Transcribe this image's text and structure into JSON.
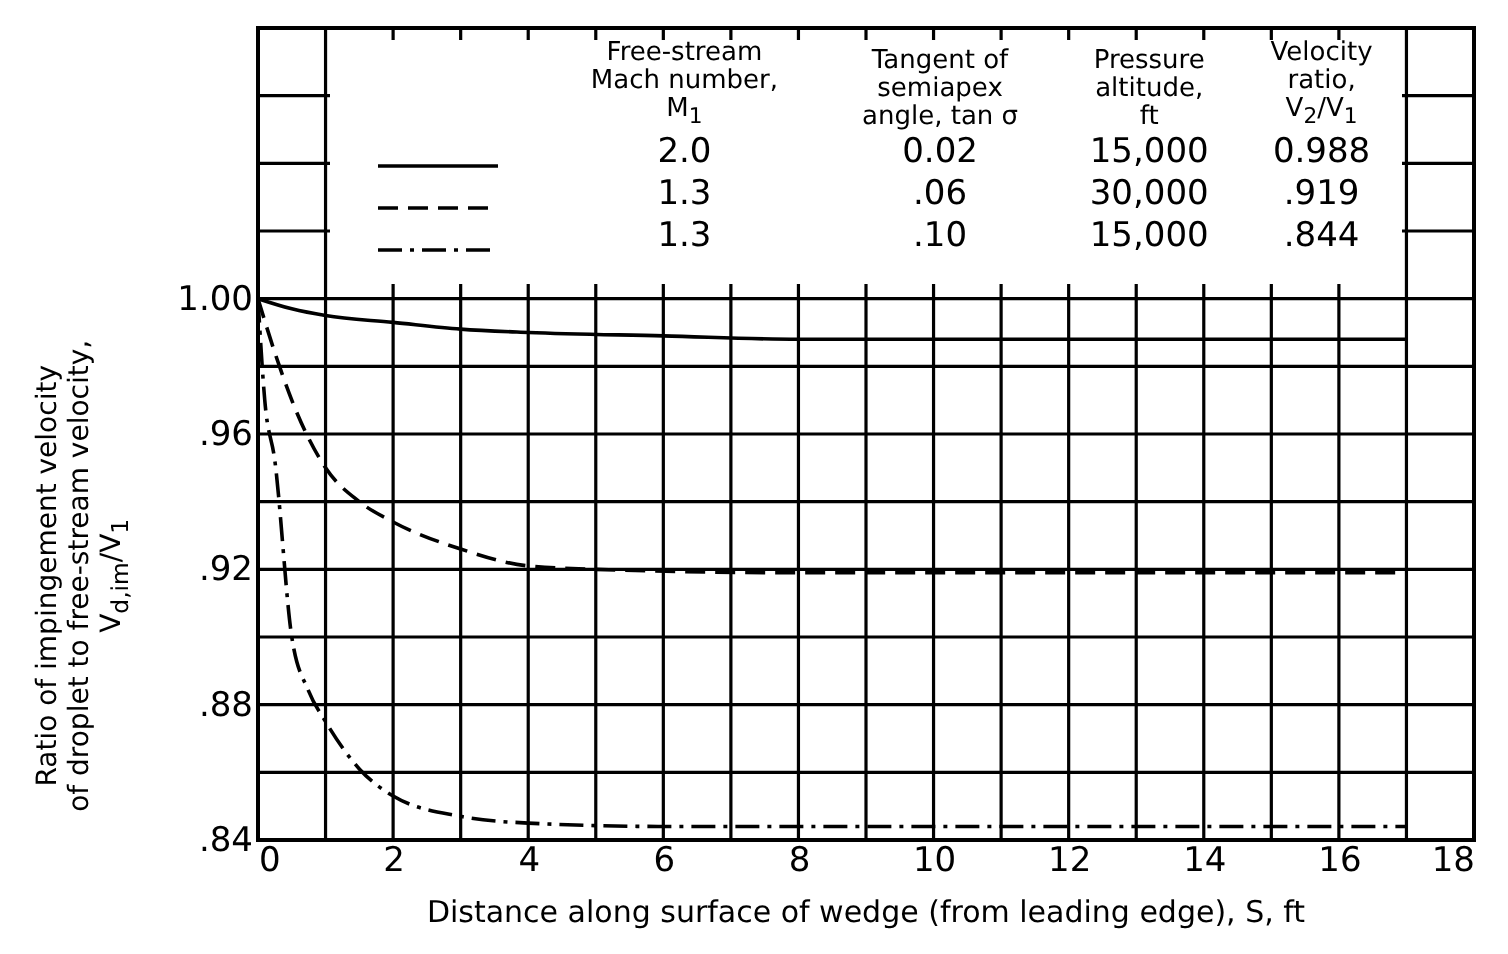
{
  "chart_data": {
    "type": "line",
    "xlabel": "Distance along surface of wedge (from leading edge), S, ft",
    "ylabel": "Ratio of impingement velocity\nof droplet to free-stream velocity,\nV$_{d,im}$/V$_{1}$",
    "xlim": [
      0,
      18
    ],
    "xticks": [
      0,
      {
        "value": 1,
        "label": null
      },
      2,
      {
        "value": 3,
        "label": null
      },
      4,
      {
        "value": 5,
        "label": null
      },
      6,
      {
        "value": 7,
        "label": null
      },
      8,
      {
        "value": 9,
        "label": null
      },
      10,
      {
        "value": 11,
        "label": null
      },
      12,
      {
        "value": 13,
        "label": null
      },
      14,
      {
        "value": 15,
        "label": null
      },
      16,
      {
        "value": 17,
        "label": null
      },
      18
    ],
    "ylim": [
      0.84,
      1.08
    ],
    "yticks": [
      {
        "value": 0.84,
        "label": ".84"
      },
      {
        "value": 0.86,
        "label": null
      },
      {
        "value": 0.88,
        "label": ".88"
      },
      {
        "value": 0.9,
        "label": null
      },
      {
        "value": 0.92,
        "label": ".92"
      },
      {
        "value": 0.94,
        "label": null
      },
      {
        "value": 0.96,
        "label": ".96"
      },
      {
        "value": 0.98,
        "label": null
      },
      {
        "value": 1.0,
        "label": "1.00"
      },
      {
        "value": 1.02,
        "label": null
      },
      {
        "value": 1.04,
        "label": null
      },
      {
        "value": 1.06,
        "label": null
      },
      {
        "value": 1.08,
        "label": null
      }
    ],
    "grid": true,
    "series": [
      {
        "color": "#000000",
        "line_style": "solid",
        "x": [
          0,
          0.5,
          1,
          2,
          3,
          4,
          6,
          8,
          12,
          17
        ],
        "values": [
          1.0,
          0.997,
          0.995,
          0.993,
          0.991,
          0.99,
          0.989,
          0.988,
          0.988,
          0.988
        ]
      },
      {
        "color": "#000000",
        "line_style": "dashed",
        "x": [
          0,
          0.25,
          0.5,
          1,
          1.5,
          2,
          3,
          4,
          5,
          8,
          17
        ],
        "values": [
          1.0,
          0.984,
          0.97,
          0.95,
          0.94,
          0.934,
          0.926,
          0.921,
          0.92,
          0.919,
          0.919
        ]
      },
      {
        "color": "#000000",
        "line_style": "dashdot",
        "x": [
          0,
          0.1,
          0.25,
          0.5,
          0.75,
          1,
          1.5,
          2,
          3,
          4,
          6,
          17
        ],
        "values": [
          1.0,
          0.97,
          0.952,
          0.9,
          0.884,
          0.875,
          0.861,
          0.853,
          0.847,
          0.845,
          0.844,
          0.844
        ]
      }
    ],
    "annotations": [
      "Free-stream\nMach number,\nM$_{1}$",
      "Tangent of\nsemiapex\nangle, tan σ",
      "Pressure\naltitude,\nft",
      "Velocity\nratio,\nV$_{2}$/V$_{1}$",
      "2.0",
      "0.02",
      "15,000",
      "0.988",
      "1.3",
      ".06",
      "30,000",
      ".919",
      "1.3",
      ".10",
      "15,000",
      ".844"
    ]
  }
}
